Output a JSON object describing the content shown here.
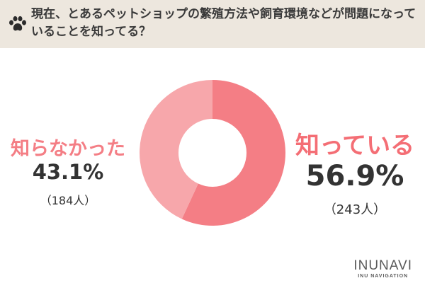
{
  "question": "現在、とあるペットショップの繁殖方法や飼育環境などが問題になっていることを知ってる？",
  "header_icon": "paw-icon",
  "colors": {
    "header_bg": "#ede7de",
    "slice_known": "#f47e85",
    "slice_unknown": "#f7a7ab",
    "label_text": "#333333"
  },
  "chart_data": {
    "type": "pie",
    "donut": true,
    "slices": [
      {
        "label": "知っている",
        "percent": 56.9,
        "percent_label": "56.9%",
        "count_label": "（243人）",
        "color": "#f47e85"
      },
      {
        "label": "知らなかった",
        "percent": 43.1,
        "percent_label": "43.1%",
        "count_label": "（184人）",
        "color": "#f7a7ab"
      }
    ]
  },
  "brand": {
    "name": "INUNAVI",
    "sub": "INU NAVIGATION"
  }
}
